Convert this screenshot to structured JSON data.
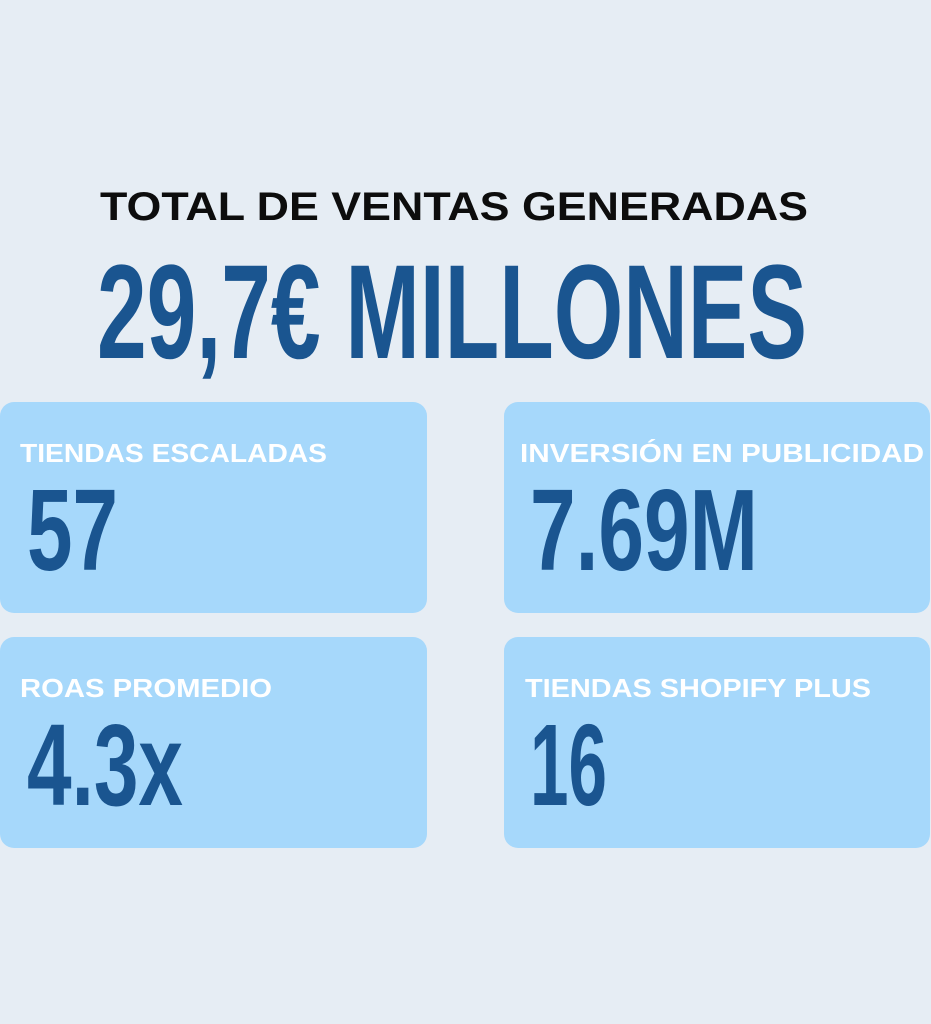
{
  "header": {
    "title": "TOTAL DE VENTAS GENERADAS",
    "total": "29,7€ MILLONES"
  },
  "cards": [
    {
      "label": "TIENDAS ESCALADAS",
      "value": "57"
    },
    {
      "label": "INVERSIÓN EN PUBLICIDAD",
      "value": "7.69M"
    },
    {
      "label": "ROAS PROMEDIO",
      "value": "4.3x"
    },
    {
      "label": "TIENDAS SHOPIFY PLUS",
      "value": "16"
    }
  ]
}
